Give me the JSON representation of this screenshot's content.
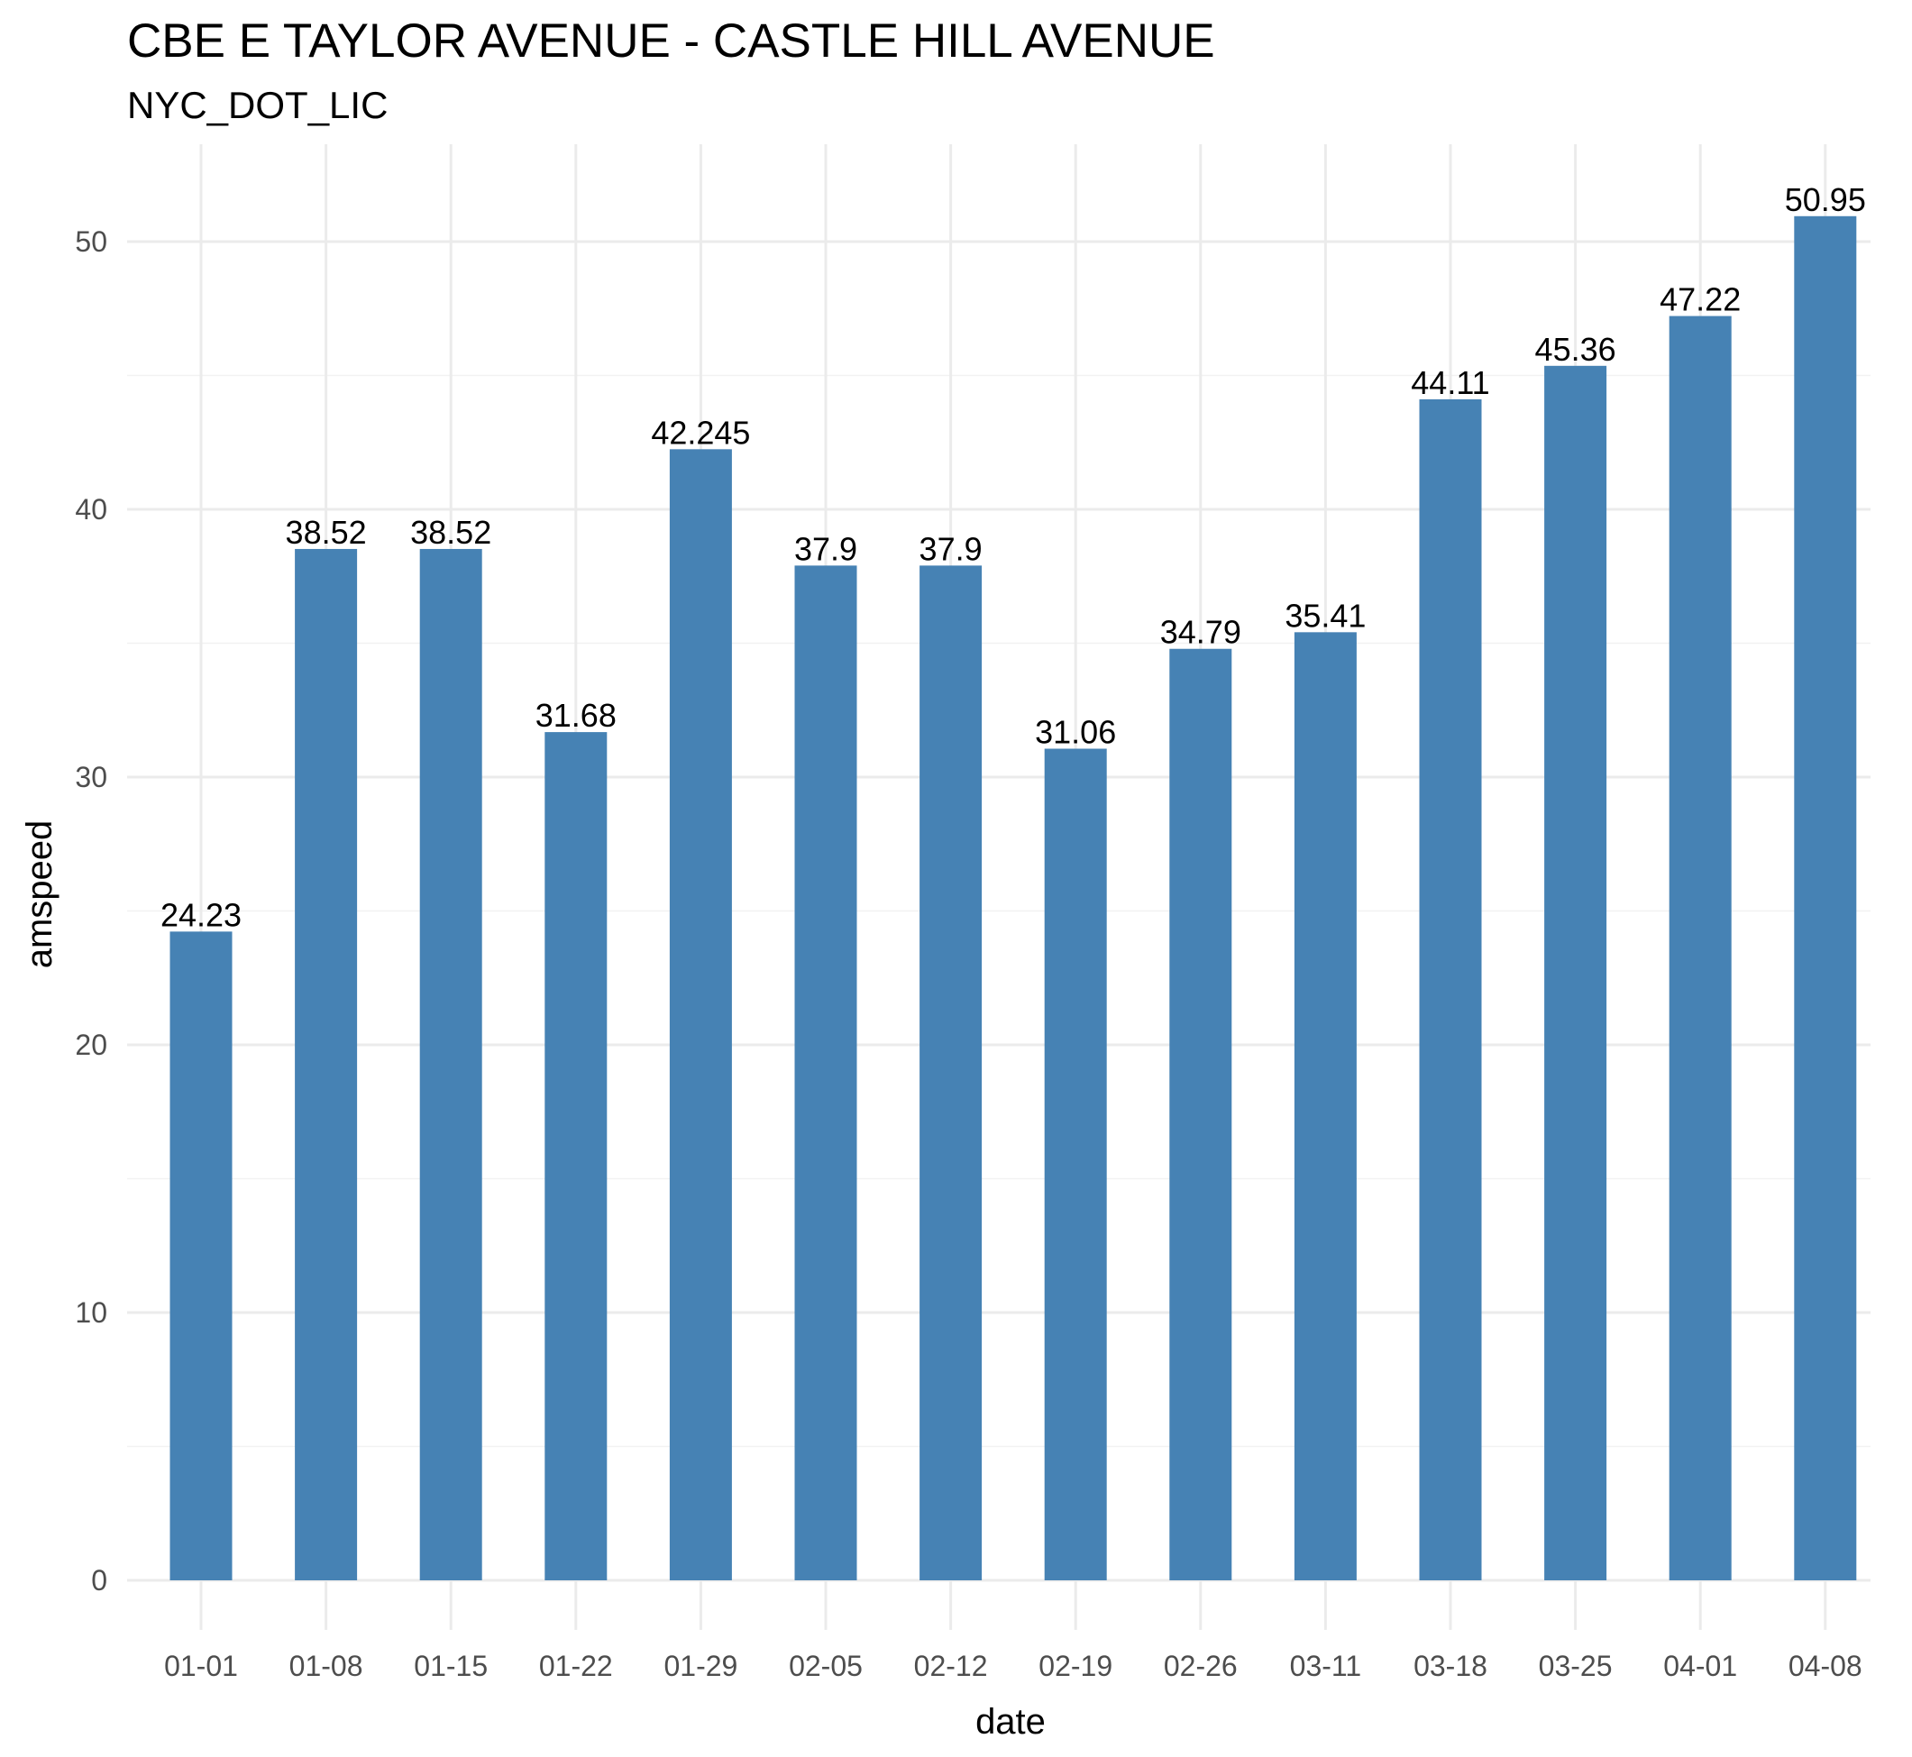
{
  "chart_data": {
    "type": "bar",
    "title": "CBE E TAYLOR AVENUE - CASTLE HILL AVENUE",
    "subtitle": "NYC_DOT_LIC",
    "xlabel": "date",
    "ylabel": "amspeed",
    "categories": [
      "01-01",
      "01-08",
      "01-15",
      "01-22",
      "01-29",
      "02-05",
      "02-12",
      "02-19",
      "02-26",
      "03-11",
      "03-18",
      "03-25",
      "04-01",
      "04-08"
    ],
    "values": [
      24.23,
      38.52,
      38.52,
      31.68,
      42.245,
      37.9,
      37.9,
      31.06,
      34.79,
      35.41,
      44.11,
      45.36,
      47.22,
      50.95
    ],
    "data_labels": [
      "24.23",
      "38.52",
      "38.52",
      "31.68",
      "42.245",
      "37.9",
      "37.9",
      "31.06",
      "34.79",
      "35.41",
      "44.11",
      "45.36",
      "47.22",
      "50.95"
    ],
    "yticks": [
      0,
      10,
      20,
      30,
      40,
      50
    ],
    "ylim": [
      0,
      53.5
    ],
    "grid": true,
    "legend": "none",
    "colors": {
      "bar": "#4682b4",
      "grid_major": "#ebebeb",
      "grid_minor": "#f2f2f2",
      "tick_text": "#4d4d4d",
      "text": "#000000"
    }
  }
}
